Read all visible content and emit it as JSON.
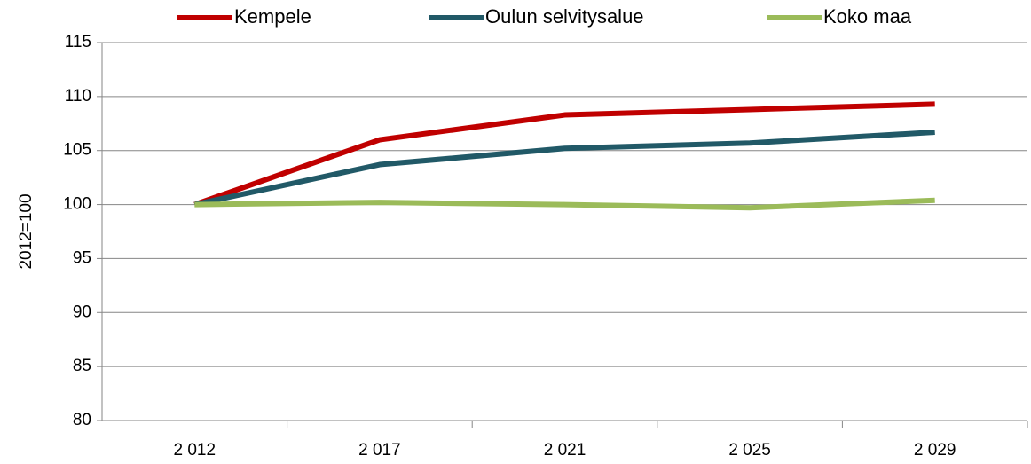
{
  "chart_data": {
    "type": "line",
    "y_label": "2012=100",
    "categories": [
      "2 012",
      "2 017",
      "2 021",
      "2 025",
      "2 029"
    ],
    "series": [
      {
        "name": "Kempele",
        "color": "#c00000",
        "values": [
          100,
          106,
          108.3,
          108.8,
          109.3
        ]
      },
      {
        "name": "Oulun selvitysalue",
        "color": "#215967",
        "values": [
          100,
          103.7,
          105.2,
          105.7,
          106.7
        ]
      },
      {
        "name": "Koko maa",
        "color": "#9bbb59",
        "values": [
          100,
          100.2,
          100,
          99.7,
          100.4
        ]
      }
    ],
    "ylim": [
      80,
      115
    ],
    "yticks": [
      80,
      85,
      90,
      95,
      100,
      105,
      110,
      115
    ],
    "grid": true,
    "legend": "top"
  }
}
